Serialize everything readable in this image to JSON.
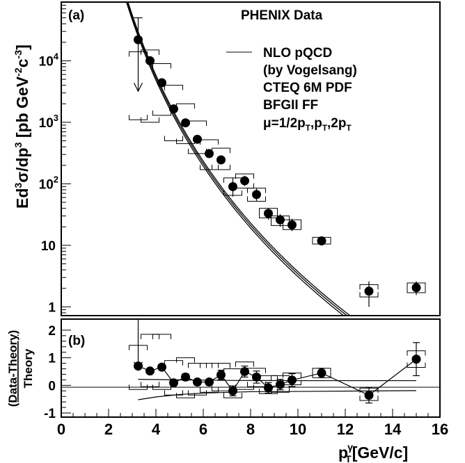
{
  "chart_data": [
    {
      "type": "scatter",
      "panel_label": "(a)",
      "title": "PHENIX Data",
      "ylabel": "Ed3σ/dp3 [pb GeV-2c-3]",
      "ylabel_parts": {
        "main": "Ed",
        "s1": "3",
        "sigma": "σ/dp",
        "s2": "3",
        "unit": " [pb GeV",
        "s3": "-2",
        "c": "c",
        "s4": "-3",
        "close": "]"
      },
      "y_scale": "log",
      "xlim": [
        0,
        16
      ],
      "ylim": [
        0.72,
        90000
      ],
      "y_ticks": [
        {
          "v": 1,
          "label": "1"
        },
        {
          "v": 10,
          "label": "10"
        },
        {
          "v": 100,
          "label": "10",
          "exp": "2"
        },
        {
          "v": 1000,
          "label": "10",
          "exp": "3"
        },
        {
          "v": 10000,
          "label": "10",
          "exp": "4"
        }
      ],
      "legend": {
        "lines": [
          "NLO pQCD",
          "(by Vogelsang)",
          "CTEQ 6M PDF",
          "BFGII FF"
        ],
        "scale_prefix": "μ=1/2p",
        "scale_sub": "T",
        "scale_sep1": ",p",
        "scale_sep2": ",2p"
      },
      "data": {
        "x": [
          3.25,
          3.75,
          4.25,
          4.75,
          5.25,
          5.75,
          6.25,
          6.75,
          7.25,
          7.75,
          8.25,
          8.75,
          9.25,
          9.75,
          11.0,
          13.0,
          15.0
        ],
        "y": [
          22000,
          10000,
          4400,
          1650,
          980,
          530,
          310,
          245,
          90,
          112,
          67,
          33,
          26,
          21.5,
          11.8,
          1.8,
          2.05
        ],
        "stat_up": [
          50000,
          10000,
          4400,
          1650,
          980,
          530,
          310,
          280,
          125,
          135,
          85,
          40,
          32,
          27,
          13.5,
          2.6,
          2.6
        ],
        "stat_lo": [
          3200,
          10000,
          4400,
          1650,
          980,
          530,
          310,
          210,
          62,
          92,
          52,
          26,
          20,
          17,
          10.4,
          1.0,
          1.55
        ],
        "sys_up": [
          14000,
          15000,
          9000,
          4000,
          2000,
          1050,
          520,
          380,
          125,
          145,
          85,
          40,
          30,
          26,
          13.5,
          2.3,
          2.45
        ],
        "sys_lo": [
          1100,
          1000,
          1300,
          500,
          450,
          310,
          170,
          170,
          65,
          85,
          52,
          28,
          21,
          18,
          10.5,
          1.45,
          1.7
        ],
        "upper_limit_index": 0
      },
      "theory_curves": [
        {
          "name": "mu=pT/2",
          "A": 295000000.0,
          "n": 7.65,
          "b": 0.057
        },
        {
          "name": "mu=pT",
          "A": 270000000.0,
          "n": 7.65,
          "b": 0.057
        },
        {
          "name": "mu=2pT",
          "A": 245000000.0,
          "n": 7.65,
          "b": 0.057
        }
      ]
    },
    {
      "type": "scatter",
      "panel_label": "(b)",
      "ylabel_top": "(Data-Theory)",
      "ylabel_bottom": "Theory",
      "xlabel": "p",
      "xlabel_sup": "γ",
      "xlabel_sub": "T",
      "xlabel_unit": "[GeV/c]",
      "xlim": [
        0,
        16
      ],
      "ylim": [
        -1.15,
        2.4
      ],
      "x_ticks": [
        0,
        2,
        4,
        6,
        8,
        10,
        12,
        14,
        16
      ],
      "y_ticks": [
        -1,
        0,
        1,
        2
      ],
      "data": {
        "x": [
          3.25,
          3.75,
          4.25,
          4.75,
          5.25,
          5.75,
          6.25,
          6.75,
          7.25,
          7.75,
          8.25,
          8.75,
          9.25,
          9.75,
          11.0,
          13.0,
          15.0
        ],
        "y": [
          0.7,
          0.52,
          0.66,
          0.09,
          0.3,
          0.12,
          0.12,
          0.38,
          -0.2,
          0.5,
          0.3,
          -0.09,
          0.03,
          0.19,
          0.45,
          -0.36,
          0.95
        ],
        "stat_up": [
          0.7,
          0.52,
          0.66,
          0.09,
          0.42,
          0.22,
          0.22,
          0.55,
          -0.02,
          0.7,
          0.52,
          0.1,
          0.22,
          0.42,
          0.62,
          -0.08,
          1.55
        ],
        "stat_lo": [
          0.7,
          0.52,
          0.66,
          0.09,
          0.18,
          0.02,
          0.02,
          0.21,
          -0.38,
          0.3,
          0.08,
          -0.28,
          -0.16,
          -0.04,
          0.28,
          -0.64,
          0.35
        ],
        "sys_up": [
          1.45,
          1.85,
          1.85,
          0.9,
          1.0,
          0.8,
          0.8,
          0.8,
          0.6,
          0.85,
          0.62,
          0.35,
          0.35,
          0.45,
          0.62,
          -0.1,
          1.25
        ],
        "sys_lo": [
          -0.15,
          -0.05,
          -0.15,
          -0.35,
          -0.45,
          -0.35,
          -0.25,
          -0.2,
          -0.45,
          -0.15,
          -0.05,
          -0.3,
          -0.25,
          0.02,
          0.28,
          -0.55,
          0.65
        ],
        "upper_limit_index": 0,
        "arrow_top": 2.4
      },
      "band_upper": {
        "x": [
          3.25,
          5.0,
          7.0,
          10.0,
          15.0
        ],
        "y": [
          0.22,
          0.2,
          0.18,
          0.17,
          0.17
        ]
      },
      "band_lower": {
        "x": [
          3.25,
          4.0,
          5.0,
          6.0,
          8.0,
          10.0,
          15.0
        ],
        "y": [
          -0.52,
          -0.42,
          -0.33,
          -0.28,
          -0.23,
          -0.22,
          -0.19
        ]
      }
    }
  ]
}
